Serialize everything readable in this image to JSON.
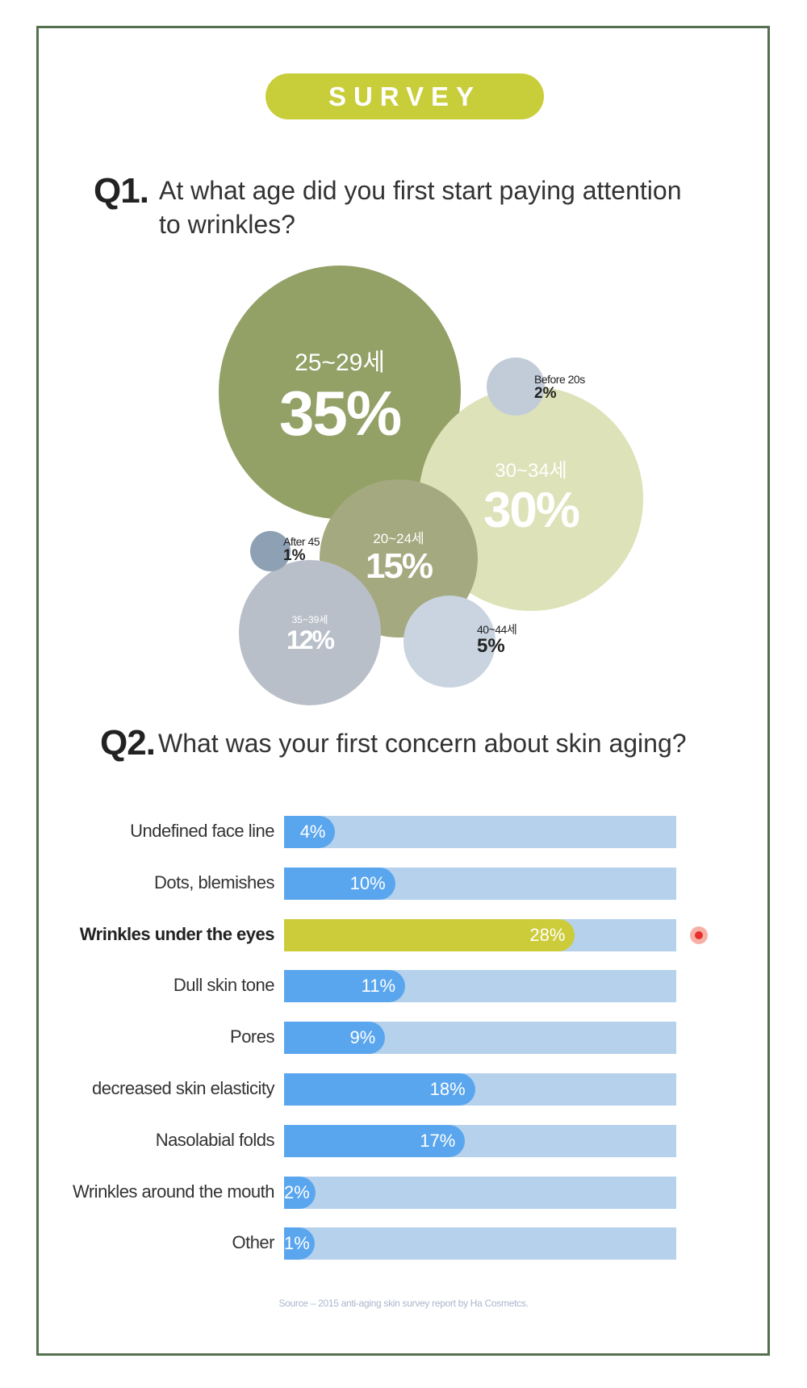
{
  "header": {
    "badge": "SURVEY"
  },
  "q1": {
    "number": "Q1.",
    "question_line1": "At what age did you first start paying attention",
    "question_line2": "to wrinkles?"
  },
  "q2": {
    "number": "Q2.",
    "question": "What was your first concern about skin aging?"
  },
  "source": "Source – 2015 anti-aging skin survey report by Ha Cosmetcs.",
  "colors": {
    "frame": "#55704f",
    "badge": "#c8cd3a",
    "bar_track": "#b6d1ec",
    "bar_fill": "#5aa6ee",
    "bar_highlight": "#cccc3a",
    "marker": "#e8302c"
  },
  "chart_data": [
    {
      "type": "bubble",
      "categories": [
        "25~29세",
        "30~34세",
        "20~24세",
        "35~39세",
        "40~44세",
        "Before 20s",
        "After 45"
      ],
      "values": [
        35,
        30,
        15,
        12,
        5,
        2,
        1
      ],
      "labels": [
        "35%",
        "30%",
        "15%",
        "12%",
        "5%",
        "2%",
        "1%"
      ],
      "colors": [
        "#93a066",
        "#dde2b8",
        "#a5a97f",
        "#b9bfc9",
        "#c9d4e0",
        "#c2ccd8",
        "#8ea0b4"
      ]
    },
    {
      "type": "bar",
      "orientation": "horizontal",
      "categories": [
        "Undefined face line",
        "Dots, blemishes",
        "Wrinkles under the eyes",
        "Dull skin tone",
        "Pores",
        "decreased skin elasticity",
        "Nasolabial folds",
        "Wrinkles around the mouth",
        "Other"
      ],
      "values": [
        4,
        10,
        28,
        11,
        9,
        18,
        17,
        2,
        1
      ],
      "labels": [
        "4%",
        "10%",
        "28%",
        "11%",
        "9%",
        "18%",
        "17%",
        "2%",
        "1%"
      ],
      "highlight": "Wrinkles under the eyes",
      "xlim": [
        0,
        35
      ]
    }
  ]
}
